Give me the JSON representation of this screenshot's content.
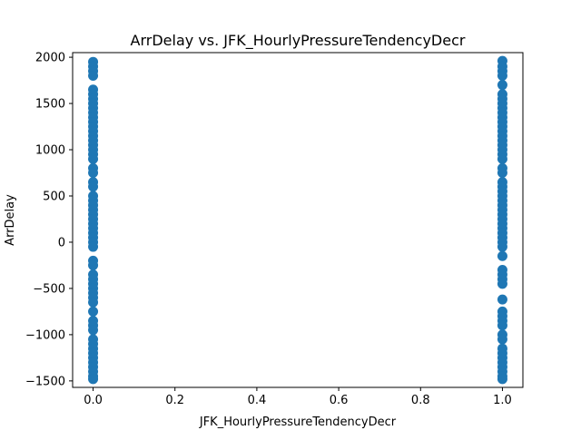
{
  "chart_data": {
    "type": "scatter",
    "title": "ArrDelay vs. JFK_HourlyPressureTendencyDecr",
    "xlabel": "JFK_HourlyPressureTendencyDecr",
    "ylabel": "ArrDelay",
    "xlim": [
      -0.05,
      1.05
    ],
    "ylim": [
      -1570,
      2050
    ],
    "x_ticks": [
      {
        "value": 0.0,
        "label": "0.0"
      },
      {
        "value": 0.2,
        "label": "0.2"
      },
      {
        "value": 0.4,
        "label": "0.4"
      },
      {
        "value": 0.6,
        "label": "0.6"
      },
      {
        "value": 0.8,
        "label": "0.8"
      },
      {
        "value": 1.0,
        "label": "1.0"
      }
    ],
    "y_ticks": [
      {
        "value": -1500,
        "label": "−1500"
      },
      {
        "value": -1000,
        "label": "−1000"
      },
      {
        "value": -500,
        "label": "−500"
      },
      {
        "value": 0,
        "label": "0"
      },
      {
        "value": 500,
        "label": "500"
      },
      {
        "value": 1000,
        "label": "1000"
      },
      {
        "value": 1500,
        "label": "1500"
      },
      {
        "value": 2000,
        "label": "2000"
      }
    ],
    "grid": false,
    "marker_color": "#1f77b4",
    "series": [
      {
        "points": [
          {
            "x": 0,
            "y": 1950
          },
          {
            "x": 0,
            "y": 1900
          },
          {
            "x": 0,
            "y": 1850
          },
          {
            "x": 0,
            "y": 1800
          },
          {
            "x": 0,
            "y": 1650
          },
          {
            "x": 0,
            "y": 1600
          },
          {
            "x": 0,
            "y": 1550
          },
          {
            "x": 0,
            "y": 1500
          },
          {
            "x": 0,
            "y": 1450
          },
          {
            "x": 0,
            "y": 1400
          },
          {
            "x": 0,
            "y": 1350
          },
          {
            "x": 0,
            "y": 1300
          },
          {
            "x": 0,
            "y": 1250
          },
          {
            "x": 0,
            "y": 1200
          },
          {
            "x": 0,
            "y": 1150
          },
          {
            "x": 0,
            "y": 1100
          },
          {
            "x": 0,
            "y": 1050
          },
          {
            "x": 0,
            "y": 1000
          },
          {
            "x": 0,
            "y": 950
          },
          {
            "x": 0,
            "y": 900
          },
          {
            "x": 0,
            "y": 800
          },
          {
            "x": 0,
            "y": 750
          },
          {
            "x": 0,
            "y": 650
          },
          {
            "x": 0,
            "y": 600
          },
          {
            "x": 0,
            "y": 500
          },
          {
            "x": 0,
            "y": 450
          },
          {
            "x": 0,
            "y": 400
          },
          {
            "x": 0,
            "y": 350
          },
          {
            "x": 0,
            "y": 300
          },
          {
            "x": 0,
            "y": 250
          },
          {
            "x": 0,
            "y": 200
          },
          {
            "x": 0,
            "y": 150
          },
          {
            "x": 0,
            "y": 100
          },
          {
            "x": 0,
            "y": 50
          },
          {
            "x": 0,
            "y": 0
          },
          {
            "x": 0,
            "y": -50
          },
          {
            "x": 0,
            "y": -200
          },
          {
            "x": 0,
            "y": -250
          },
          {
            "x": 0,
            "y": -350
          },
          {
            "x": 0,
            "y": -400
          },
          {
            "x": 0,
            "y": -450
          },
          {
            "x": 0,
            "y": -500
          },
          {
            "x": 0,
            "y": -550
          },
          {
            "x": 0,
            "y": -600
          },
          {
            "x": 0,
            "y": -650
          },
          {
            "x": 0,
            "y": -750
          },
          {
            "x": 0,
            "y": -850
          },
          {
            "x": 0,
            "y": -900
          },
          {
            "x": 0,
            "y": -950
          },
          {
            "x": 0,
            "y": -1050
          },
          {
            "x": 0,
            "y": -1100
          },
          {
            "x": 0,
            "y": -1150
          },
          {
            "x": 0,
            "y": -1200
          },
          {
            "x": 0,
            "y": -1250
          },
          {
            "x": 0,
            "y": -1300
          },
          {
            "x": 0,
            "y": -1350
          },
          {
            "x": 0,
            "y": -1400
          },
          {
            "x": 0,
            "y": -1450
          },
          {
            "x": 0,
            "y": -1480
          },
          {
            "x": 1,
            "y": 1960
          },
          {
            "x": 1,
            "y": 1900
          },
          {
            "x": 1,
            "y": 1850
          },
          {
            "x": 1,
            "y": 1800
          },
          {
            "x": 1,
            "y": 1700
          },
          {
            "x": 1,
            "y": 1600
          },
          {
            "x": 1,
            "y": 1550
          },
          {
            "x": 1,
            "y": 1500
          },
          {
            "x": 1,
            "y": 1450
          },
          {
            "x": 1,
            "y": 1400
          },
          {
            "x": 1,
            "y": 1350
          },
          {
            "x": 1,
            "y": 1300
          },
          {
            "x": 1,
            "y": 1250
          },
          {
            "x": 1,
            "y": 1200
          },
          {
            "x": 1,
            "y": 1150
          },
          {
            "x": 1,
            "y": 1100
          },
          {
            "x": 1,
            "y": 1050
          },
          {
            "x": 1,
            "y": 1000
          },
          {
            "x": 1,
            "y": 950
          },
          {
            "x": 1,
            "y": 900
          },
          {
            "x": 1,
            "y": 800
          },
          {
            "x": 1,
            "y": 750
          },
          {
            "x": 1,
            "y": 650
          },
          {
            "x": 1,
            "y": 600
          },
          {
            "x": 1,
            "y": 550
          },
          {
            "x": 1,
            "y": 500
          },
          {
            "x": 1,
            "y": 450
          },
          {
            "x": 1,
            "y": 400
          },
          {
            "x": 1,
            "y": 350
          },
          {
            "x": 1,
            "y": 300
          },
          {
            "x": 1,
            "y": 250
          },
          {
            "x": 1,
            "y": 200
          },
          {
            "x": 1,
            "y": 150
          },
          {
            "x": 1,
            "y": 100
          },
          {
            "x": 1,
            "y": 50
          },
          {
            "x": 1,
            "y": 0
          },
          {
            "x": 1,
            "y": -50
          },
          {
            "x": 1,
            "y": -150
          },
          {
            "x": 1,
            "y": -300
          },
          {
            "x": 1,
            "y": -350
          },
          {
            "x": 1,
            "y": -400
          },
          {
            "x": 1,
            "y": -450
          },
          {
            "x": 1,
            "y": -620
          },
          {
            "x": 1,
            "y": -750
          },
          {
            "x": 1,
            "y": -800
          },
          {
            "x": 1,
            "y": -850
          },
          {
            "x": 1,
            "y": -900
          },
          {
            "x": 1,
            "y": -1000
          },
          {
            "x": 1,
            "y": -1050
          },
          {
            "x": 1,
            "y": -1150
          },
          {
            "x": 1,
            "y": -1200
          },
          {
            "x": 1,
            "y": -1250
          },
          {
            "x": 1,
            "y": -1300
          },
          {
            "x": 1,
            "y": -1350
          },
          {
            "x": 1,
            "y": -1400
          },
          {
            "x": 1,
            "y": -1450
          },
          {
            "x": 1,
            "y": -1480
          }
        ]
      }
    ]
  }
}
